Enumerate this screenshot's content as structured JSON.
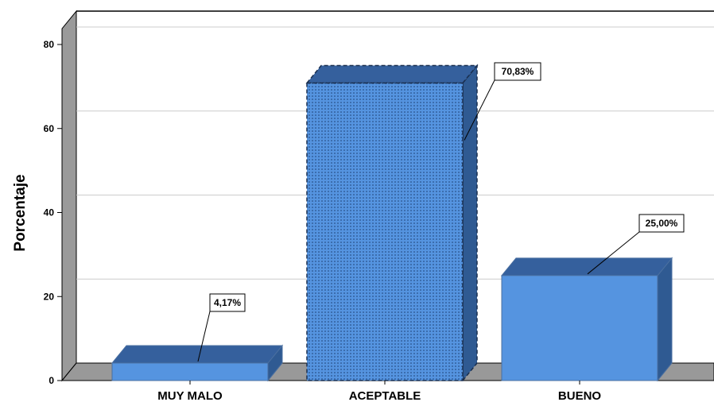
{
  "chart_data": {
    "type": "bar",
    "categories": [
      "MUY MALO",
      "ACEPTABLE",
      "BUENO"
    ],
    "values": [
      4.17,
      70.83,
      25.0
    ],
    "data_labels": [
      "4,17%",
      "70,83%",
      "25,00%"
    ],
    "ylabel": "Porcentaje",
    "xlabel": "",
    "ylim": [
      0,
      80
    ],
    "yticks": [
      0,
      20,
      40,
      60,
      80
    ],
    "ytick_labels": [
      "0",
      "20",
      "40",
      "60",
      "80"
    ],
    "grid": true,
    "three_d": true,
    "highlighted_category": "ACEPTABLE",
    "colors": {
      "bar_front": "#5594e0",
      "bar_top": "#35609d",
      "bar_side": "#2f5a92",
      "floor": "#999999",
      "wall_left": "#9a9a9a",
      "grid": "#cccccc",
      "outline": "#000000"
    }
  }
}
